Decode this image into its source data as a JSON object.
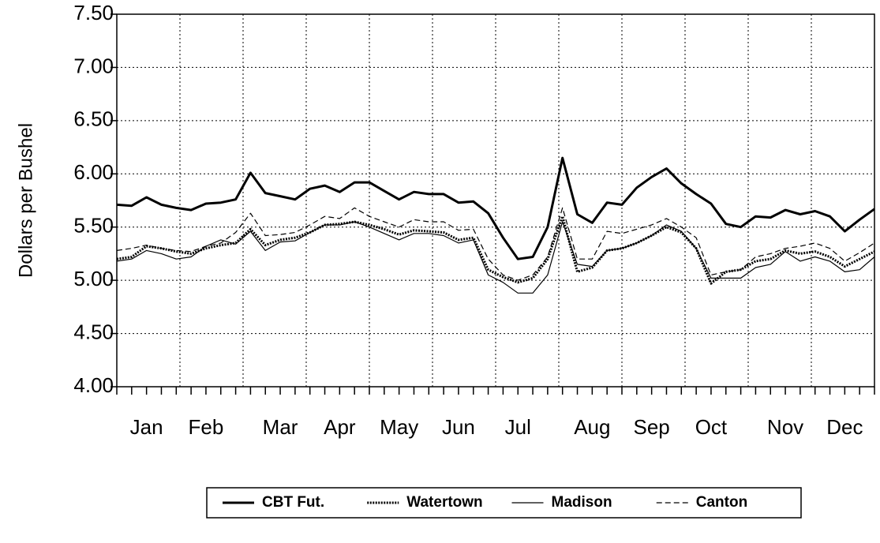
{
  "chart_data": {
    "type": "line",
    "ylabel": "Dollars per Bushel",
    "categories": [
      null,
      null,
      "Jan",
      null,
      null,
      null,
      "Feb",
      null,
      null,
      null,
      null,
      "Mar",
      null,
      null,
      null,
      "Apr",
      null,
      null,
      null,
      "May",
      null,
      null,
      null,
      "Jun",
      null,
      null,
      null,
      "Jul",
      null,
      null,
      null,
      null,
      "Aug",
      null,
      null,
      null,
      "Sep",
      null,
      null,
      null,
      "Oct",
      null,
      null,
      null,
      null,
      "Nov",
      null,
      null,
      null,
      "Dec",
      null,
      null
    ],
    "series": [
      {
        "name": "CBT Fut.",
        "color": "#000000",
        "line_style": "solid",
        "line_width": 3,
        "values": [
          5.71,
          5.7,
          5.78,
          5.71,
          5.68,
          5.66,
          5.72,
          5.73,
          5.76,
          6.01,
          5.82,
          5.79,
          5.76,
          5.86,
          5.89,
          5.83,
          5.92,
          5.92,
          5.84,
          5.76,
          5.83,
          5.81,
          5.81,
          5.73,
          5.74,
          5.63,
          5.4,
          5.2,
          5.22,
          5.5,
          6.15,
          5.62,
          5.54,
          5.73,
          5.71,
          5.87,
          5.97,
          6.05,
          5.91,
          5.81,
          5.72,
          5.53,
          5.5,
          5.6,
          5.59,
          5.66,
          5.62,
          5.65,
          5.6,
          5.46,
          5.57,
          5.67
        ]
      },
      {
        "name": "Watertown",
        "color": "#000000",
        "line_style": "dotted",
        "line_width": 3,
        "values": [
          5.2,
          5.22,
          5.32,
          5.3,
          5.27,
          5.25,
          5.3,
          5.33,
          5.35,
          5.48,
          5.33,
          5.38,
          5.4,
          5.45,
          5.52,
          5.53,
          5.55,
          5.52,
          5.48,
          5.43,
          5.47,
          5.46,
          5.45,
          5.38,
          5.4,
          5.1,
          5.03,
          4.98,
          5.02,
          5.2,
          5.6,
          5.08,
          5.12,
          5.28,
          5.3,
          5.35,
          5.42,
          5.5,
          5.45,
          5.3,
          4.97,
          5.08,
          5.1,
          5.18,
          5.2,
          5.28,
          5.25,
          5.27,
          5.22,
          5.13,
          5.2,
          5.27
        ]
      },
      {
        "name": "Madison",
        "color": "#000000",
        "line_style": "solid",
        "line_width": 1.2,
        "values": [
          5.18,
          5.2,
          5.28,
          5.25,
          5.2,
          5.22,
          5.32,
          5.38,
          5.34,
          5.46,
          5.28,
          5.36,
          5.37,
          5.45,
          5.52,
          5.52,
          5.55,
          5.5,
          5.44,
          5.38,
          5.44,
          5.44,
          5.42,
          5.35,
          5.38,
          5.05,
          4.98,
          4.88,
          4.88,
          5.05,
          5.55,
          5.15,
          5.13,
          5.28,
          5.3,
          5.35,
          5.42,
          5.52,
          5.46,
          5.3,
          5.02,
          5.02,
          5.02,
          5.12,
          5.15,
          5.27,
          5.18,
          5.22,
          5.18,
          5.08,
          5.1,
          5.22
        ]
      },
      {
        "name": "Canton",
        "color": "#000000",
        "line_style": "dashed",
        "line_width": 1.2,
        "values": [
          5.28,
          5.3,
          5.33,
          5.3,
          5.28,
          5.27,
          5.32,
          5.35,
          5.45,
          5.63,
          5.42,
          5.43,
          5.45,
          5.52,
          5.6,
          5.58,
          5.68,
          5.6,
          5.55,
          5.5,
          5.57,
          5.55,
          5.55,
          5.47,
          5.48,
          5.2,
          5.05,
          5.0,
          5.05,
          5.22,
          5.68,
          5.2,
          5.2,
          5.46,
          5.44,
          5.48,
          5.52,
          5.58,
          5.5,
          5.4,
          5.05,
          5.08,
          5.1,
          5.22,
          5.25,
          5.3,
          5.32,
          5.35,
          5.3,
          5.18,
          5.26,
          5.35
        ]
      }
    ],
    "ylim": [
      4,
      7.5
    ],
    "yticks": [
      {
        "value": 4,
        "label": "4.00"
      },
      {
        "value": 4.5,
        "label": "4.50"
      },
      {
        "value": 5,
        "label": "5.00"
      },
      {
        "value": 5.5,
        "label": "5.50"
      },
      {
        "value": 6,
        "label": "6.00"
      },
      {
        "value": 6.5,
        "label": "6.50"
      },
      {
        "value": 7,
        "label": "7.00"
      },
      {
        "value": 7.5,
        "label": "7.50"
      }
    ],
    "grid": true,
    "legend": "bottom"
  }
}
